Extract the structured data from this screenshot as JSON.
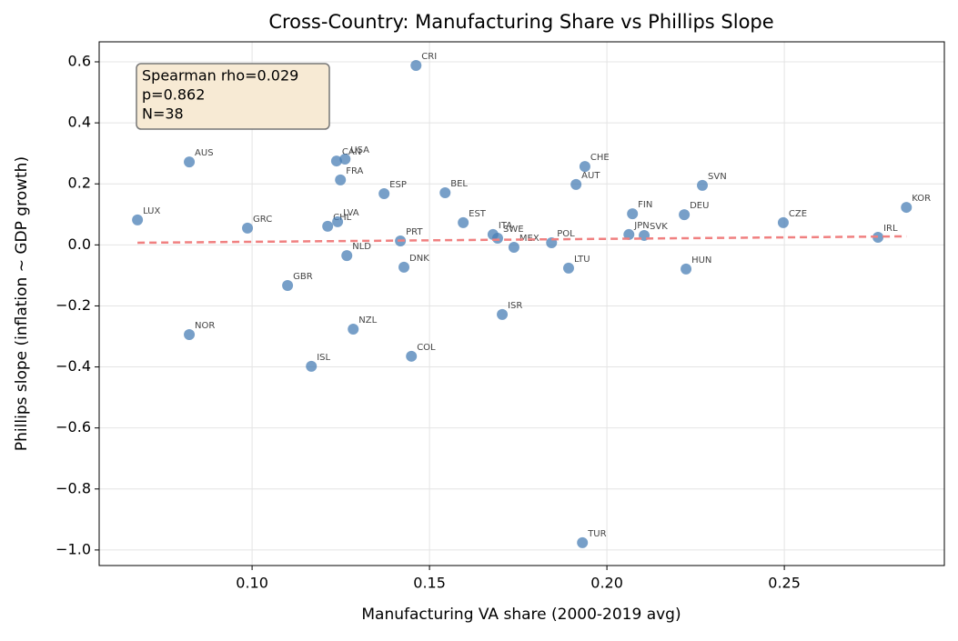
{
  "chart_data": {
    "type": "scatter",
    "title": "Cross-Country: Manufacturing Share vs Phillips Slope",
    "x_label": "Manufacturing VA share (2000-2019 avg)",
    "y_label": "Phillips slope (inflation ~ GDP growth)",
    "annotation": [
      "Spearman rho=0.029",
      "p=0.862",
      "N=38"
    ],
    "labels": [
      "LUX",
      "AUS",
      "NOR",
      "GRC",
      "GBR",
      "ISL",
      "CHL",
      "LVA",
      "CAN",
      "USA",
      "FRA",
      "NLD",
      "NZL",
      "ESP",
      "PRT",
      "DNK",
      "COL",
      "CRI",
      "BEL",
      "EST",
      "ITA",
      "SWE",
      "ISR",
      "MEX",
      "POL",
      "LTU",
      "AUT",
      "TUR",
      "CHE",
      "FIN",
      "JPN",
      "SVK",
      "DEU",
      "HUN",
      "SVN",
      "CZE",
      "IRL",
      "KOR"
    ],
    "x": [
      0.0677,
      0.0823,
      0.0823,
      0.0987,
      0.11,
      0.1167,
      0.1213,
      0.1241,
      0.1238,
      0.1262,
      0.1249,
      0.1267,
      0.1285,
      0.1372,
      0.1418,
      0.1428,
      0.1449,
      0.1462,
      0.1544,
      0.1595,
      0.1679,
      0.1692,
      0.1705,
      0.1738,
      0.1844,
      0.1892,
      0.1913,
      0.1931,
      0.1938,
      0.2072,
      0.2062,
      0.2105,
      0.2218,
      0.2223,
      0.2269,
      0.2497,
      0.2764,
      0.2844
    ],
    "values": [
      0.082,
      0.272,
      -0.294,
      0.055,
      -0.133,
      -0.398,
      0.061,
      0.076,
      0.275,
      0.281,
      0.213,
      -0.035,
      -0.276,
      0.168,
      0.013,
      -0.073,
      -0.365,
      0.588,
      0.171,
      0.073,
      0.034,
      0.022,
      -0.228,
      -0.008,
      0.007,
      -0.076,
      0.198,
      -0.976,
      0.257,
      0.102,
      0.034,
      0.031,
      0.099,
      -0.079,
      0.195,
      0.073,
      0.025,
      0.123
    ],
    "color": "#4a7fb5",
    "trend": {
      "x": [
        0.0677,
        0.2844
      ],
      "values": [
        0.007,
        0.028
      ],
      "color": "#f08080"
    },
    "xlim": [
      0.0569,
      0.2951
    ],
    "ylim": [
      -1.051,
      0.6656
    ],
    "xticks": [
      {
        "value": 0.1,
        "label": "0.10"
      },
      0.15,
      {
        "value": 0.2,
        "label": "0.20"
      },
      0.25
    ],
    "yticks": [
      0.6,
      0.4,
      0.2,
      {
        "value": 0,
        "label": "0.0"
      },
      {
        "value": -0.2,
        "label": "−0.2"
      },
      {
        "value": -0.4,
        "label": "−0.4"
      },
      {
        "value": -0.6,
        "label": "−0.6"
      },
      {
        "value": -0.8,
        "label": "−0.8"
      },
      {
        "value": -1.0,
        "label": "−1.0"
      }
    ],
    "grid": true
  }
}
